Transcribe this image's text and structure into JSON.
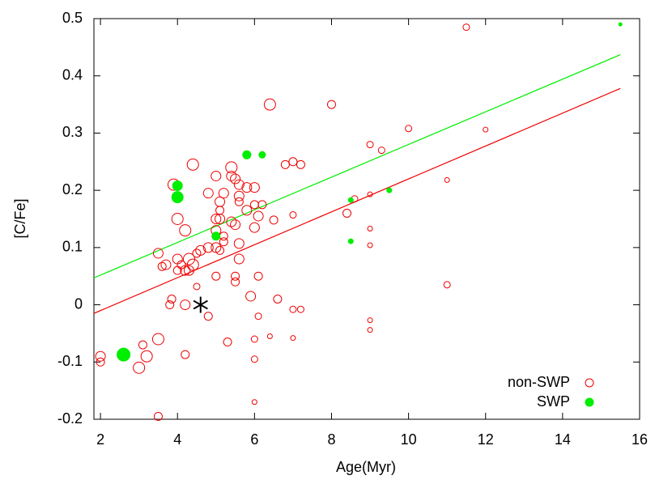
{
  "chart_data": {
    "type": "scatter",
    "x_label": "Age(Myr)",
    "y_label": "[C/Fe]",
    "xlim": [
      1.83,
      16
    ],
    "ylim": [
      -0.2,
      0.5
    ],
    "xticks": [
      2,
      4,
      6,
      8,
      10,
      12,
      14,
      16
    ],
    "yticks": [
      -0.2,
      -0.1,
      0,
      0.1,
      0.2,
      0.3,
      0.4,
      0.5
    ],
    "legend": "bottom-right",
    "series": [
      {
        "name": "non-SWP",
        "color": "#ee0000",
        "filled": false,
        "x": [
          2.0,
          2.0,
          3.0,
          3.1,
          3.2,
          3.5,
          3.5,
          3.5,
          3.6,
          3.7,
          3.8,
          3.85,
          3.9,
          4.0,
          4.0,
          4.0,
          4.1,
          4.2,
          4.2,
          4.2,
          4.2,
          4.3,
          4.3,
          4.4,
          4.4,
          4.5,
          4.5,
          4.6,
          4.8,
          4.8,
          4.8,
          5.0,
          5.0,
          5.0,
          5.0,
          5.0,
          5.1,
          5.1,
          5.1,
          5.1,
          5.2,
          5.2,
          5.2,
          5.3,
          5.4,
          5.4,
          5.4,
          5.5,
          5.5,
          5.5,
          5.5,
          5.6,
          5.6,
          5.6,
          5.6,
          5.6,
          5.8,
          5.8,
          5.9,
          6.0,
          6.0,
          6.0,
          6.0,
          6.0,
          6.0,
          6.1,
          6.1,
          6.1,
          6.2,
          6.4,
          6.4,
          6.5,
          6.6,
          6.8,
          7.0,
          7.0,
          7.0,
          7.0,
          7.2,
          7.2,
          8.0,
          8.4,
          8.6,
          9.0,
          9.0,
          9.0,
          9.0,
          9.0,
          9.0,
          9.3,
          10.0,
          11.0,
          11.0,
          11.5,
          12.0
        ],
        "values": [
          -0.09,
          -0.1,
          -0.11,
          -0.07,
          -0.09,
          -0.06,
          -0.195,
          0.09,
          0.067,
          0.07,
          0.0,
          0.01,
          0.21,
          0.15,
          0.08,
          0.06,
          0.07,
          0.13,
          0.06,
          0.0,
          -0.087,
          0.08,
          0.06,
          0.245,
          0.07,
          0.09,
          0.032,
          0.095,
          0.195,
          -0.02,
          0.1,
          0.225,
          0.15,
          0.13,
          0.1,
          0.05,
          0.18,
          0.165,
          0.15,
          0.095,
          0.12,
          0.11,
          0.195,
          -0.065,
          0.24,
          0.225,
          0.145,
          0.14,
          0.22,
          0.05,
          0.04,
          0.19,
          0.18,
          0.21,
          0.107,
          0.08,
          0.165,
          0.205,
          0.015,
          0.135,
          0.175,
          0.205,
          -0.06,
          -0.095,
          -0.17,
          0.155,
          0.05,
          -0.02,
          0.175,
          0.35,
          -0.055,
          0.148,
          0.01,
          0.245,
          0.25,
          0.157,
          -0.008,
          -0.058,
          0.245,
          -0.008,
          0.35,
          0.16,
          0.185,
          0.28,
          0.193,
          0.133,
          0.104,
          -0.027,
          -0.044,
          0.27,
          0.308,
          0.218,
          0.035,
          0.485,
          0.306
        ],
        "sizes": [
          6,
          5,
          7,
          5,
          7,
          7,
          5,
          6,
          5,
          6,
          5,
          5,
          7,
          7,
          6,
          5,
          5,
          7,
          6,
          6,
          5,
          7,
          6,
          7,
          7,
          5,
          4,
          6,
          6,
          5,
          6,
          6,
          6,
          6,
          6,
          5,
          6,
          5,
          6,
          5,
          5,
          5,
          6,
          5,
          7,
          6,
          6,
          6,
          6,
          5,
          5,
          6,
          5,
          6,
          6,
          6,
          6,
          6,
          6,
          6,
          5,
          6,
          4,
          4,
          3,
          6,
          5,
          4,
          5,
          7,
          3,
          5,
          5,
          5,
          5,
          4,
          4,
          3,
          5,
          4,
          5,
          5,
          4,
          4,
          3,
          3,
          3,
          3,
          3,
          4,
          4,
          3,
          4,
          4,
          3
        ]
      },
      {
        "name": "SWP",
        "color": "#00ee00",
        "filled": true,
        "x": [
          2.6,
          4.0,
          4.0,
          5.0,
          5.8,
          6.2,
          8.5,
          8.5,
          9.5,
          15.5
        ],
        "values": [
          -0.087,
          0.208,
          0.188,
          0.12,
          0.262,
          0.262,
          0.183,
          0.111,
          0.2,
          0.49
        ],
        "sizes": [
          8,
          6,
          7,
          5,
          5,
          4,
          3,
          3,
          3,
          2
        ]
      }
    ],
    "fit_lines": [
      {
        "color": "#ee0000",
        "x": [
          1.83,
          15.5
        ],
        "values": [
          -0.015,
          0.378
        ]
      },
      {
        "color": "#00ee00",
        "x": [
          1.83,
          15.5
        ],
        "values": [
          0.047,
          0.437
        ]
      }
    ],
    "marker": {
      "x": 4.6,
      "y": 0
    }
  }
}
